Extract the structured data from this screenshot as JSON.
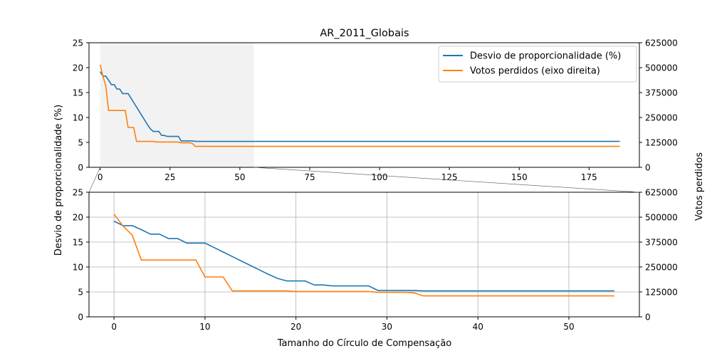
{
  "chart_data": {
    "type": "line",
    "title": "AR_2011_Globais",
    "xlabel": "Tamanho do Círculo de Compensação",
    "ylabel_left": "Desvio de proporcionalidade (%)",
    "ylabel_right": "Votos perdidos",
    "legend_position": "top-right",
    "highlight_region": [
      0,
      55
    ],
    "panels": [
      {
        "name": "overview",
        "xlim": [
          -4,
          193
        ],
        "ylim_left": [
          0,
          25
        ],
        "ylim_right": [
          0,
          625000
        ],
        "x_ticks": [
          0,
          25,
          50,
          75,
          100,
          125,
          150,
          175
        ],
        "y_ticks_left": [
          0,
          5,
          10,
          15,
          20,
          25
        ],
        "y_ticks_right": [
          0,
          125000,
          250000,
          375000,
          500000,
          625000
        ],
        "grid": false,
        "legend": true
      },
      {
        "name": "zoom",
        "xlim": [
          -2.75,
          57.75
        ],
        "ylim_left": [
          0,
          25
        ],
        "ylim_right": [
          0,
          625000
        ],
        "x_ticks": [
          0,
          10,
          20,
          30,
          40,
          50
        ],
        "y_ticks_left": [
          0,
          5,
          10,
          15,
          20,
          25
        ],
        "y_ticks_right": [
          0,
          125000,
          250000,
          375000,
          500000,
          625000
        ],
        "grid": true,
        "legend": false
      }
    ],
    "series": [
      {
        "name": "Desvio de proporcionalidade (%)",
        "axis": "left",
        "color": "#1f77b4",
        "x": [
          0,
          1,
          2,
          3,
          4,
          5,
          6,
          7,
          8,
          9,
          10,
          11,
          12,
          13,
          14,
          15,
          16,
          17,
          18,
          19,
          20,
          21,
          22,
          23,
          24,
          25,
          26,
          27,
          28,
          29,
          30,
          31,
          32,
          33,
          34,
          40,
          55,
          186
        ],
        "y": [
          19.2,
          18.3,
          18.3,
          17.5,
          16.6,
          16.6,
          15.7,
          15.7,
          14.8,
          14.8,
          14.8,
          13.9,
          13.0,
          12.1,
          11.2,
          10.3,
          9.4,
          8.5,
          7.7,
          7.2,
          7.2,
          7.2,
          6.4,
          6.4,
          6.2,
          6.2,
          6.2,
          6.2,
          6.2,
          5.3,
          5.3,
          5.3,
          5.3,
          5.3,
          5.2,
          5.2,
          5.2,
          5.2
        ]
      },
      {
        "name": "Votos perdidos (eixo direita)",
        "axis": "right",
        "color": "#ff7f0e",
        "x": [
          0,
          1,
          2,
          3,
          4,
          5,
          6,
          7,
          8,
          9,
          10,
          11,
          12,
          13,
          14,
          15,
          16,
          17,
          18,
          19,
          20,
          21,
          22,
          23,
          24,
          25,
          26,
          27,
          28,
          29,
          30,
          31,
          32,
          33,
          34,
          40,
          55,
          186
        ],
        "y": [
          515000,
          455000,
          410000,
          285000,
          285000,
          285000,
          285000,
          285000,
          285000,
          285000,
          200000,
          200000,
          200000,
          130000,
          130000,
          130000,
          130000,
          130000,
          130000,
          130000,
          127000,
          127000,
          127000,
          127000,
          127000,
          127000,
          127000,
          127000,
          127000,
          123000,
          123000,
          123000,
          123000,
          120000,
          105000,
          105000,
          105000,
          105000
        ]
      }
    ]
  }
}
